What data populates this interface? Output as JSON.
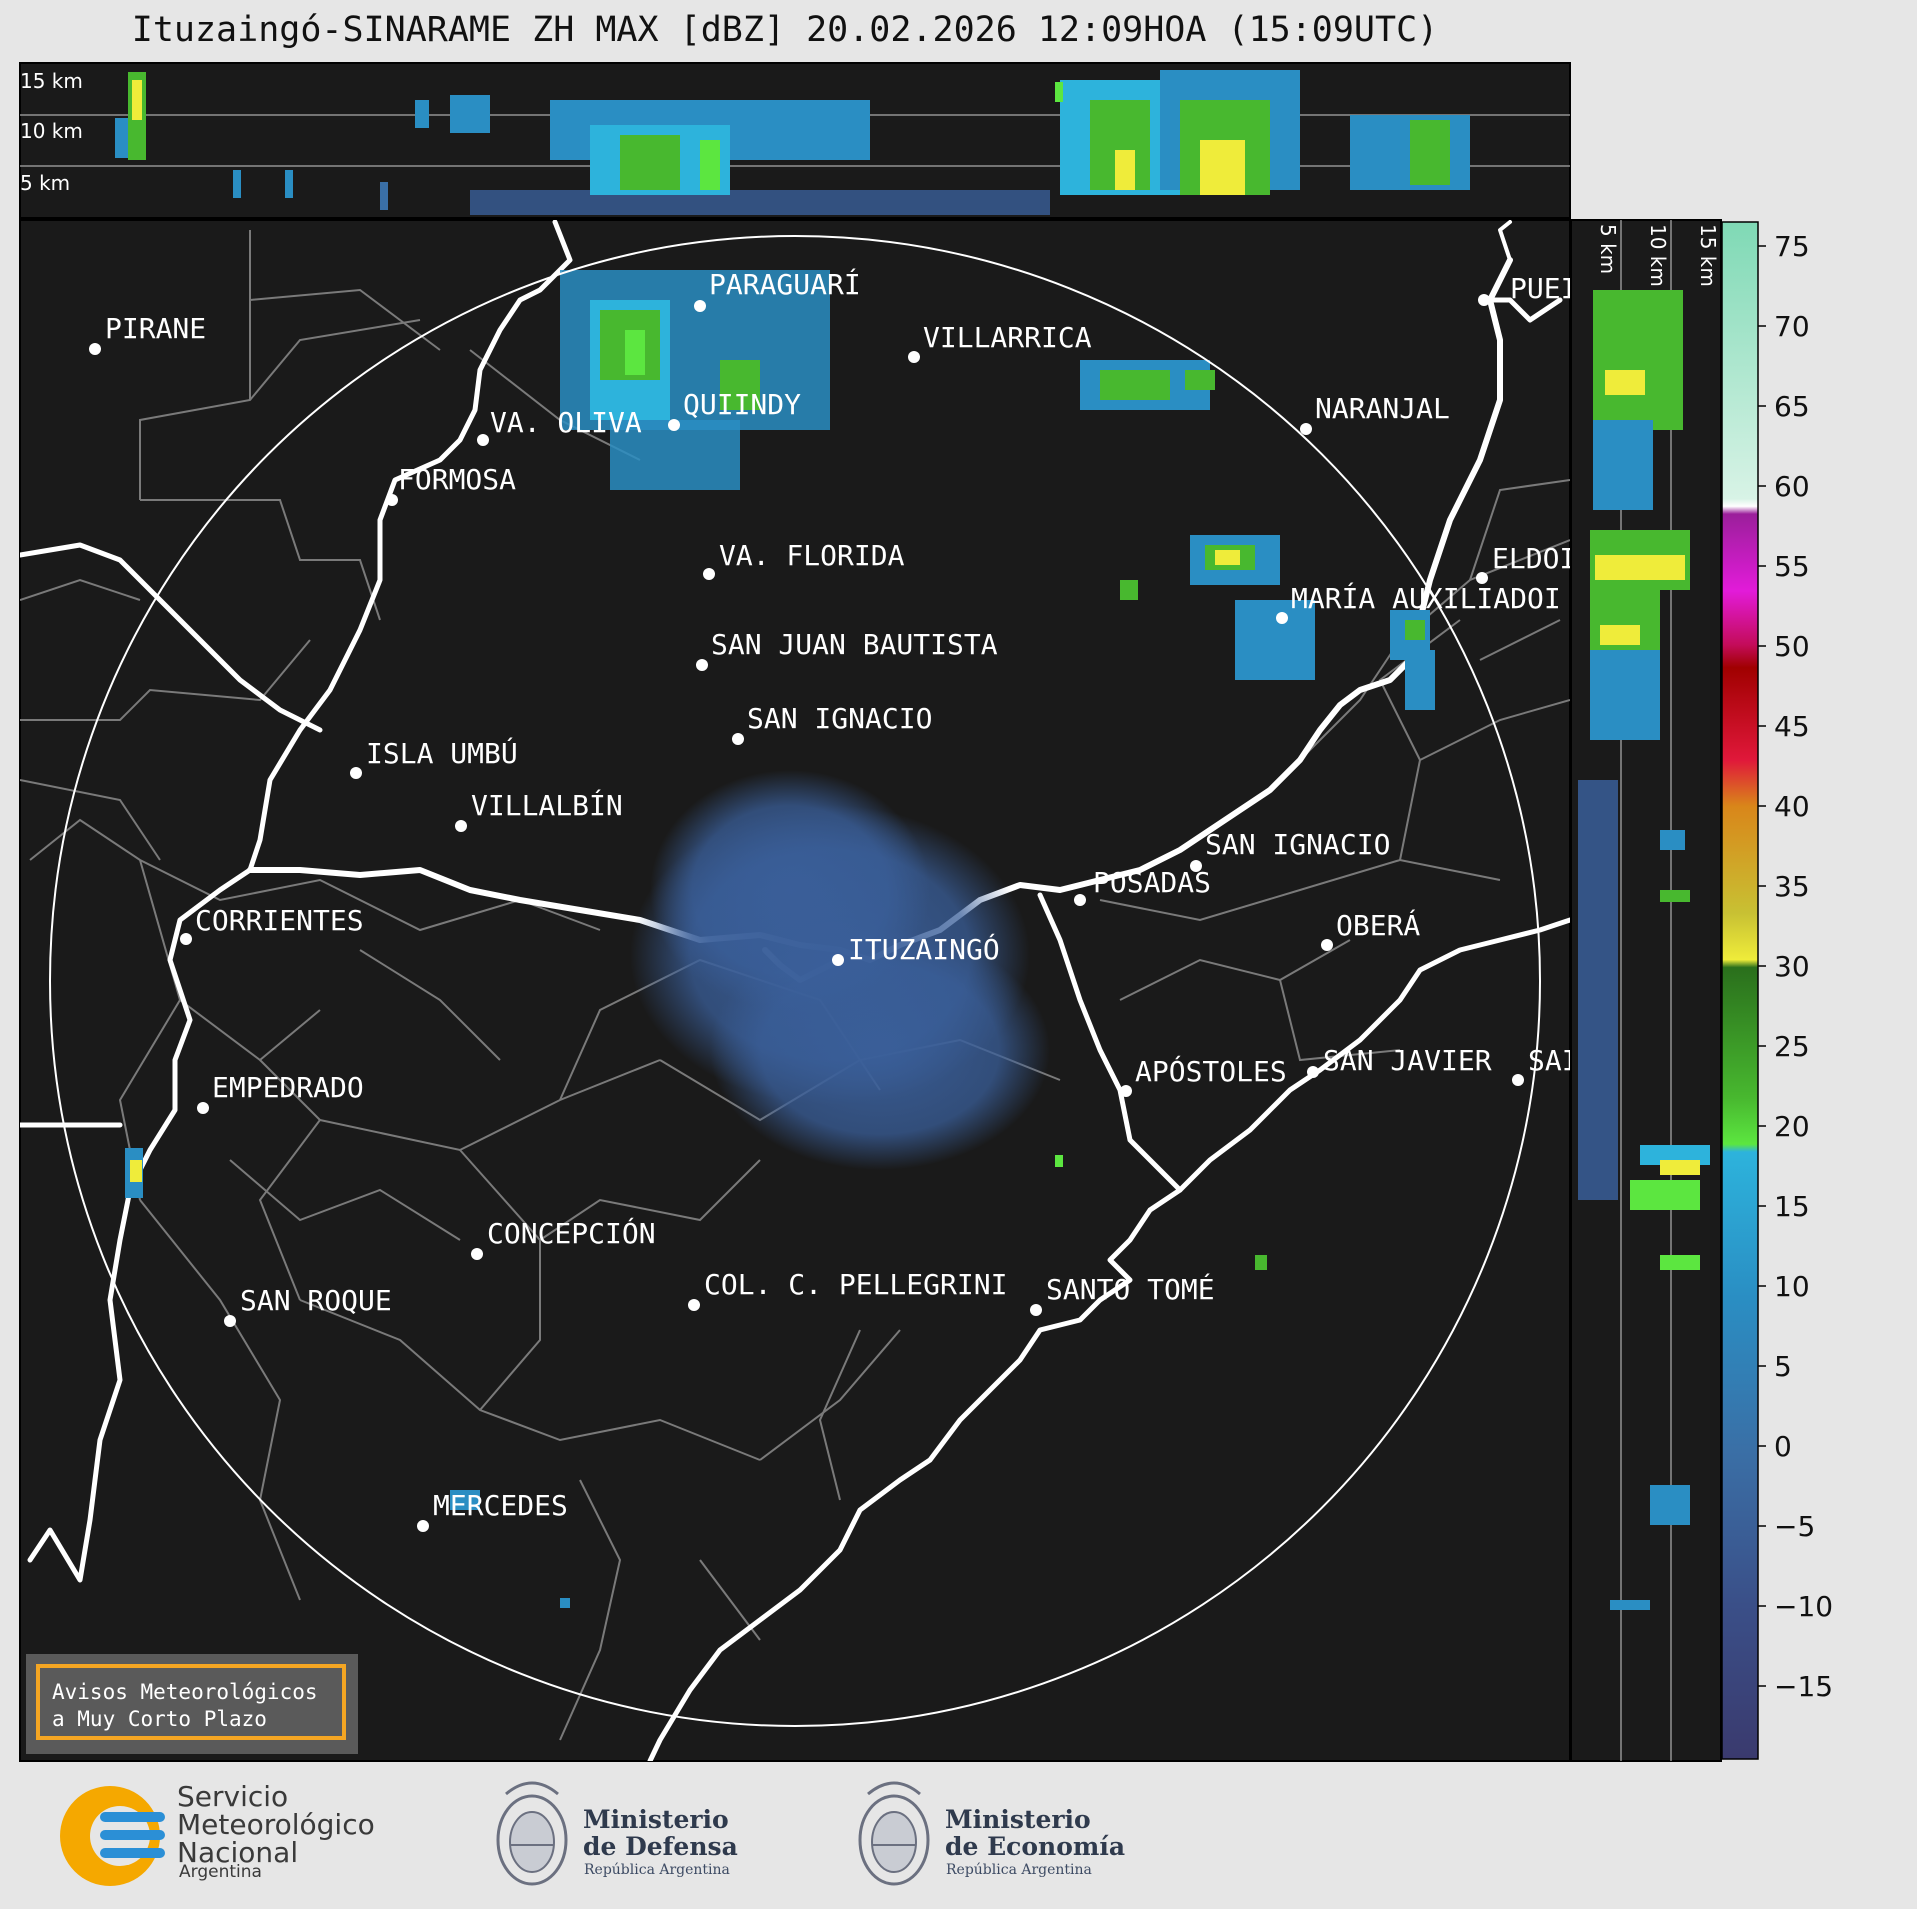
{
  "title": "Ituzaingó-SINARAME ZH MAX [dBZ] 20.02.2026 12:09HOA (15:09UTC)",
  "top_panel": {
    "levels": [
      "15 km",
      "10 km",
      "5 km"
    ]
  },
  "side_panel": {
    "levels": [
      "5 km",
      "10 km",
      "15 km"
    ]
  },
  "colorbar": {
    "ticks": [
      "75",
      "70",
      "65",
      "60",
      "55",
      "50",
      "45",
      "40",
      "35",
      "30",
      "25",
      "20",
      "15",
      "10",
      "5",
      "0",
      "−5",
      "−10",
      "−15"
    ]
  },
  "cities": [
    {
      "name": "PIRANE"
    },
    {
      "name": "PARAGUARÍ"
    },
    {
      "name": "VILLARRICA"
    },
    {
      "name": "QUIINDY"
    },
    {
      "name": "VA. OLIVA"
    },
    {
      "name": "NARANJAL"
    },
    {
      "name": "FORMOSA"
    },
    {
      "name": "PUEI"
    },
    {
      "name": "VA. FLORIDA"
    },
    {
      "name": "ELDOI"
    },
    {
      "name": "MARÍA AUXILIADOI"
    },
    {
      "name": "SAN JUAN BAUTISTA"
    },
    {
      "name": "SAN IGNACIO"
    },
    {
      "name": "ISLA UMBÚ"
    },
    {
      "name": "VILLALBÍN"
    },
    {
      "name": "SAN IGNACIO"
    },
    {
      "name": "POSADAS"
    },
    {
      "name": "CORRIENTES"
    },
    {
      "name": "ITUZAINGÓ"
    },
    {
      "name": "OBERÁ"
    },
    {
      "name": "EMPEDRADO"
    },
    {
      "name": "APÓSTOLES"
    },
    {
      "name": "SAN JAVIER"
    },
    {
      "name": "SAI"
    },
    {
      "name": "CONCEPCIÓN"
    },
    {
      "name": "COL. C. PELLEGRINI"
    },
    {
      "name": "SANTO TOMÉ"
    },
    {
      "name": "SAN ROQUE"
    },
    {
      "name": "MERCEDES"
    }
  ],
  "warning_box": {
    "line1": "Avisos Meteorológicos",
    "line2": "a Muy Corto Plazo"
  },
  "logos": {
    "smn": {
      "line1": "Servicio",
      "line2": "Meteorológico",
      "line3": "Nacional",
      "country": "Argentina"
    },
    "defensa": {
      "line1": "Ministerio",
      "line2": "de Defensa",
      "sub": "República Argentina"
    },
    "economia": {
      "line1": "Ministerio",
      "line2": "de Economía",
      "sub": "República Argentina"
    }
  },
  "colors": {
    "panel_bg": "#1a1a1a",
    "page_bg": "#e6e6e6",
    "warning_border": "#f5a623"
  }
}
